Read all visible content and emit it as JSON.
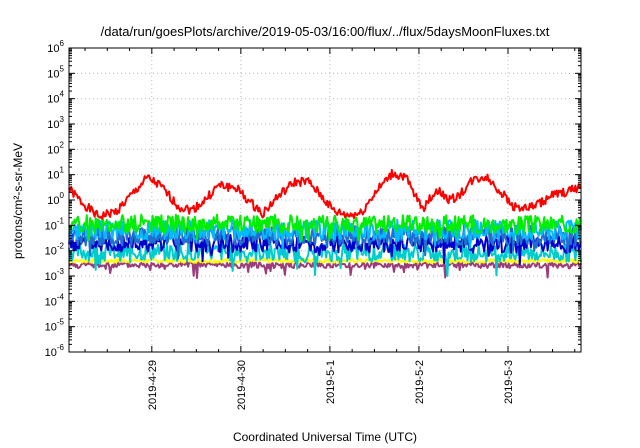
{
  "chart_data": {
    "type": "line",
    "title": "/data/run/goesPlots/archive/2019-05-03/16:00/flux/../flux/5daysMoonFluxes.txt",
    "xlabel": "Coordinated Universal Time (UTC)",
    "ylabel": "protons/cm²-s-sr-MeV",
    "x_unit": "days from 2019-04-29 00:00 UTC",
    "xlim": [
      -0.93,
      4.82
    ],
    "ylim": [
      1e-06,
      1000000.0
    ],
    "yscale": "log",
    "grid": true,
    "legend": "none",
    "x_tick_values": [
      0,
      1,
      2,
      3,
      4
    ],
    "x_tick_labels": [
      "2019-4-29",
      "2019-4-30",
      "2019-5-1",
      "2019-5-2",
      "2019-5-3"
    ],
    "y_tick_labels": [
      {
        "base": "10",
        "exp": "-6"
      },
      {
        "base": "10",
        "exp": "-5"
      },
      {
        "base": "10",
        "exp": "-4"
      },
      {
        "base": "10",
        "exp": "-3"
      },
      {
        "base": "10",
        "exp": "-2"
      },
      {
        "base": "10",
        "exp": "-1"
      },
      {
        "base": "10",
        "exp": "0"
      },
      {
        "base": "10",
        "exp": "1"
      },
      {
        "base": "10",
        "exp": "2"
      },
      {
        "base": "10",
        "exp": "3"
      },
      {
        "base": "10",
        "exp": "4"
      },
      {
        "base": "10",
        "exp": "5"
      },
      {
        "base": "10",
        "exp": "6"
      }
    ],
    "series": [
      {
        "color": "#ff0000",
        "base": [
          [
            -0.93,
            2.8
          ],
          [
            -0.8,
            0.9
          ],
          [
            -0.6,
            0.22
          ],
          [
            -0.4,
            0.35
          ],
          [
            -0.2,
            2.0
          ],
          [
            -0.05,
            7.5
          ],
          [
            0.1,
            3.5
          ],
          [
            0.3,
            0.55
          ],
          [
            0.45,
            0.4
          ],
          [
            0.6,
            1.0
          ],
          [
            0.75,
            3.8
          ],
          [
            0.95,
            3.0
          ],
          [
            1.1,
            0.8
          ],
          [
            1.25,
            0.3
          ],
          [
            1.4,
            1.2
          ],
          [
            1.6,
            5.0
          ],
          [
            1.75,
            5.5
          ],
          [
            1.9,
            1.5
          ],
          [
            2.05,
            0.35
          ],
          [
            2.2,
            0.25
          ],
          [
            2.35,
            0.3
          ],
          [
            2.5,
            1.8
          ],
          [
            2.7,
            11.0
          ],
          [
            2.85,
            8.0
          ],
          [
            2.95,
            1.5
          ],
          [
            3.05,
            0.5
          ],
          [
            3.2,
            2.5
          ],
          [
            3.35,
            1.0
          ],
          [
            3.45,
            1.5
          ],
          [
            3.6,
            6.0
          ],
          [
            3.75,
            8.5
          ],
          [
            3.9,
            2.5
          ],
          [
            4.05,
            0.6
          ],
          [
            4.2,
            0.45
          ],
          [
            4.35,
            0.7
          ],
          [
            4.5,
            1.5
          ],
          [
            4.65,
            2.0
          ],
          [
            4.82,
            3.5
          ]
        ],
        "noise": 0.18,
        "spike": 0.0,
        "seed": 1
      },
      {
        "color": "#00ee00",
        "base": [
          [
            -0.93,
            0.12
          ],
          [
            4.82,
            0.11
          ]
        ],
        "noise": 0.35,
        "spike": 0.6,
        "seed": 2
      },
      {
        "color": "#00bbff",
        "base": [
          [
            -0.93,
            0.07
          ],
          [
            4.82,
            0.065
          ]
        ],
        "noise": 0.4,
        "spike": 0.6,
        "seed": 3
      },
      {
        "color": "#1f6fd0",
        "base": [
          [
            -0.93,
            0.04
          ],
          [
            4.82,
            0.04
          ]
        ],
        "noise": 0.4,
        "spike": 0.6,
        "seed": 4
      },
      {
        "color": "#0000cc",
        "base": [
          [
            -0.93,
            0.02
          ],
          [
            4.82,
            0.018
          ]
        ],
        "noise": 0.35,
        "spike": 0.6,
        "seed": 5
      },
      {
        "color": "#00cccc",
        "base": [
          [
            -0.93,
            0.009
          ],
          [
            4.82,
            0.008
          ]
        ],
        "noise": 0.35,
        "spike": 0.6,
        "seed": 6
      },
      {
        "color": "#ffff00",
        "base": [
          [
            -0.93,
            0.004
          ],
          [
            4.82,
            0.004
          ]
        ],
        "noise": 0.08,
        "spike": 0.0,
        "seed": 7
      },
      {
        "color": "#9a3d7a",
        "base": [
          [
            -0.93,
            0.0027
          ],
          [
            4.82,
            0.0027
          ]
        ],
        "noise": 0.12,
        "spike": 0.5,
        "seed": 8
      }
    ]
  }
}
